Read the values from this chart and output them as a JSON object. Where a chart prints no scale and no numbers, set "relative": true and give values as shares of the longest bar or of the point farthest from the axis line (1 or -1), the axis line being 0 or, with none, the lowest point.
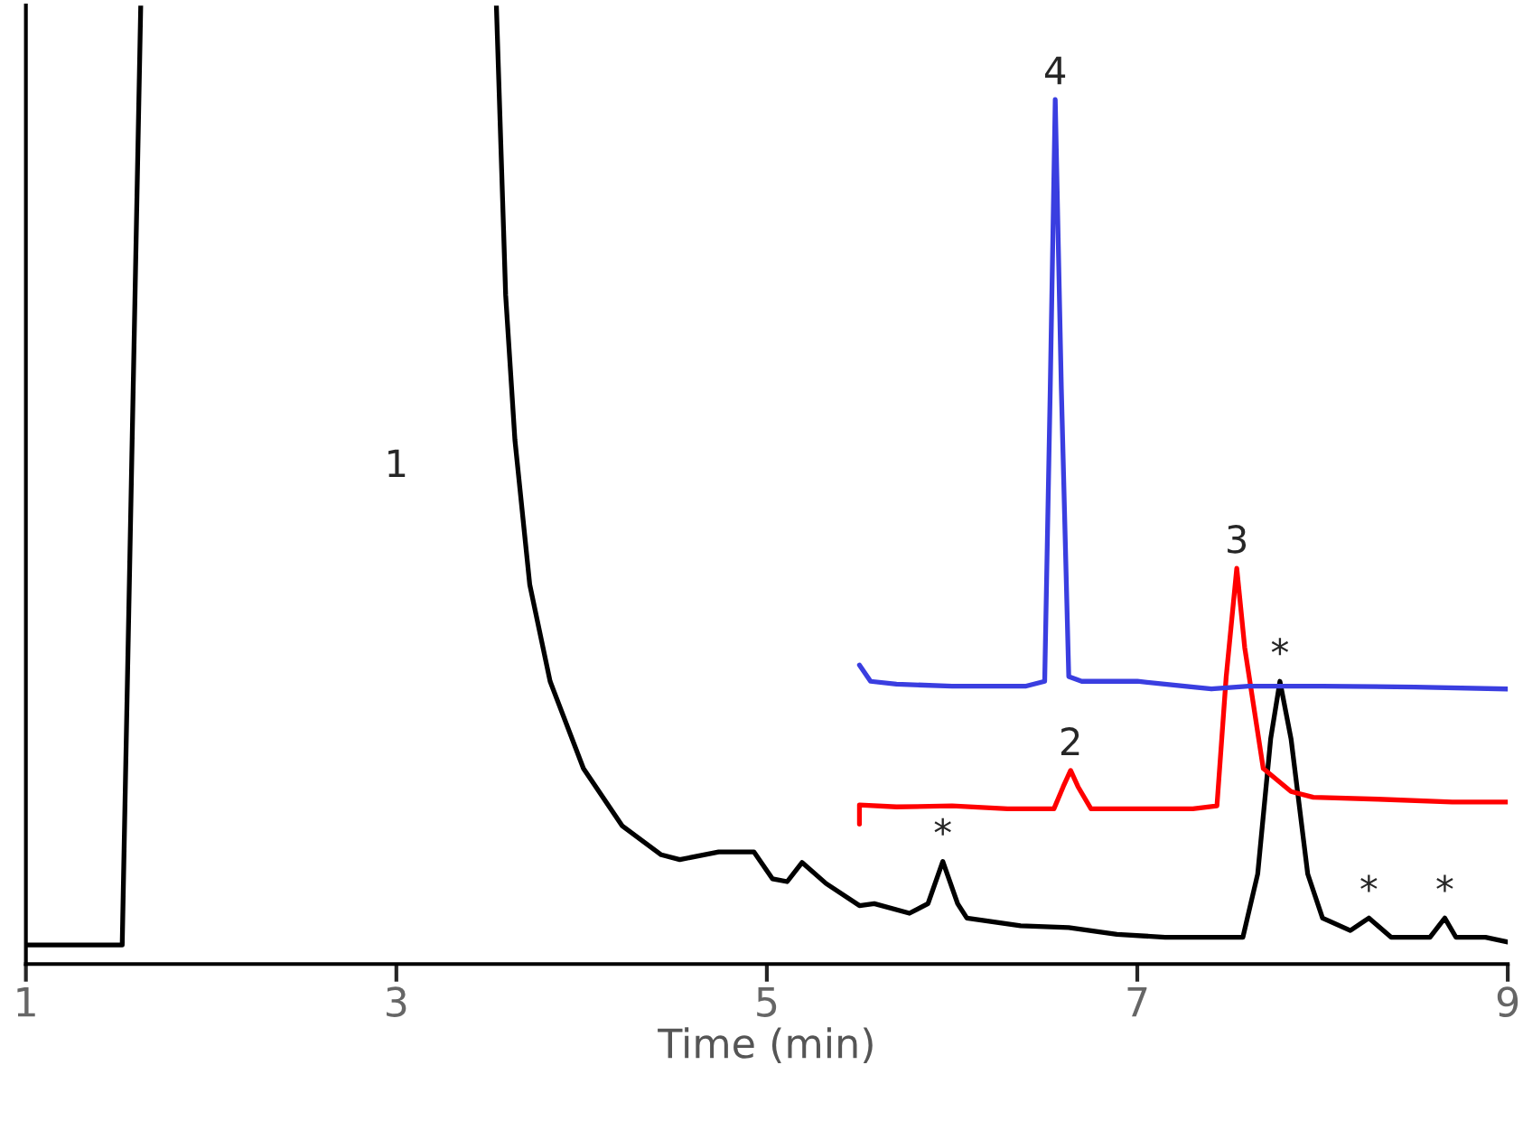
{
  "chart_data": {
    "type": "line",
    "relative": true,
    "xlabel": "Time (min)",
    "xlim": [
      1,
      9
    ],
    "xticks": [
      1,
      3,
      5,
      7,
      9
    ],
    "grid": false,
    "legend": false,
    "marker": "none",
    "line_style": "solid",
    "tick_labels": "x",
    "series": [
      {
        "color": "#000000",
        "x": [
          1.0,
          1.52,
          1.62,
          2.5,
          3.54,
          3.59,
          3.64,
          3.72,
          3.83,
          4.01,
          4.22,
          4.43,
          4.53,
          4.74,
          4.93,
          5.03,
          5.11,
          5.19,
          5.32,
          5.5,
          5.58,
          5.77,
          5.87,
          5.95,
          6.03,
          6.08,
          6.37,
          6.63,
          6.89,
          7.15,
          7.57,
          7.65,
          7.72,
          7.77,
          7.83,
          7.92,
          8.0,
          8.15,
          8.25,
          8.37,
          8.58,
          8.66,
          8.72,
          8.88,
          9.0
        ],
        "values": [
          0.02,
          0.02,
          1,
          null,
          1,
          0.698,
          0.547,
          0.396,
          0.295,
          0.204,
          0.144,
          0.114,
          0.109,
          0.117,
          0.117,
          0.089,
          0.086,
          0.106,
          0.084,
          0.061,
          0.063,
          0.053,
          0.063,
          0.107,
          0.063,
          0.048,
          0.04,
          0.038,
          0.031,
          0.028,
          0.028,
          0.094,
          0.235,
          0.295,
          0.235,
          0.094,
          0.048,
          0.035,
          0.048,
          0.028,
          0.028,
          0.048,
          0.028,
          0.028,
          0.023
        ]
      },
      {
        "color": "#ff0000",
        "x": [
          5.5,
          5.5,
          5.7,
          6.0,
          6.3,
          6.55,
          6.6,
          6.64,
          6.68,
          6.75,
          7.0,
          7.3,
          7.43,
          7.48,
          7.537,
          7.58,
          7.68,
          7.83,
          7.95,
          8.3,
          8.7,
          9.0
        ],
        "values": [
          0.146,
          0.166,
          0.164,
          0.165,
          0.162,
          0.162,
          0.185,
          0.202,
          0.185,
          0.162,
          0.162,
          0.162,
          0.165,
          0.3,
          0.413,
          0.33,
          0.204,
          0.18,
          0.174,
          0.172,
          0.169,
          0.169
        ]
      },
      {
        "color": "#3a3ee0",
        "x": [
          5.5,
          5.56,
          5.7,
          6.0,
          6.4,
          6.5,
          6.53,
          6.557,
          6.59,
          6.63,
          6.7,
          7.0,
          7.4,
          7.6,
          8.0,
          8.5,
          9.0
        ],
        "values": [
          0.312,
          0.295,
          0.292,
          0.29,
          0.29,
          0.295,
          0.6,
          0.902,
          0.6,
          0.3,
          0.295,
          0.295,
          0.287,
          0.29,
          0.29,
          0.289,
          0.287
        ]
      }
    ],
    "annotations": [
      "1",
      {
        "text": "2",
        "x": 6.64,
        "y": 0.202
      },
      {
        "text": "3",
        "x": 7.537,
        "y": 0.413
      },
      {
        "text": "4",
        "x": 6.557,
        "y": 0.902
      },
      {
        "text": "*",
        "x": 5.95,
        "y": 0.107
      },
      {
        "text": "*",
        "x": 7.77,
        "y": 0.295
      },
      {
        "text": "*",
        "x": 8.25,
        "y": 0.048
      },
      {
        "text": "*",
        "x": 8.66,
        "y": 0.048
      }
    ]
  }
}
